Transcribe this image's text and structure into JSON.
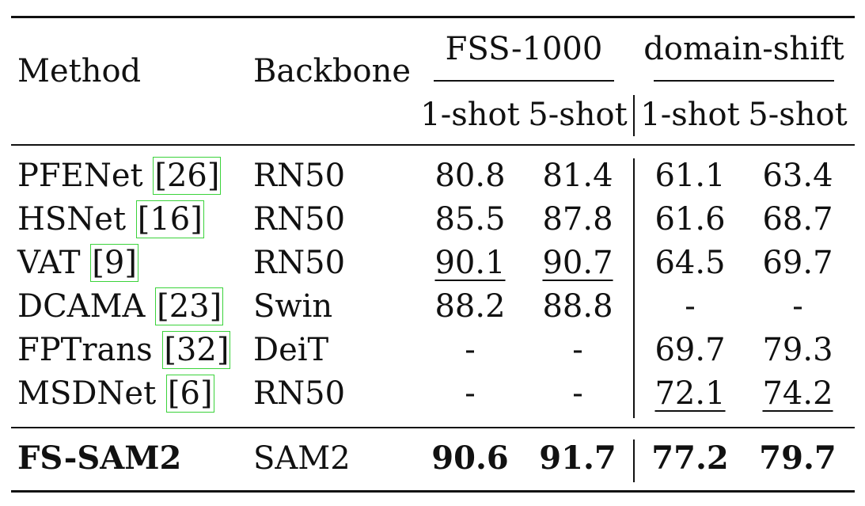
{
  "table": {
    "headers": {
      "method": "Method",
      "backbone": "Backbone",
      "group1": "FSS-1000",
      "group2": "domain-shift",
      "sub": [
        "1-shot",
        "5-shot",
        "1-shot",
        "5-shot"
      ]
    },
    "rows": [
      {
        "method": "PFENet",
        "cite": "[26]",
        "backbone": "RN50",
        "values": [
          "80.8",
          "81.4",
          "61.1",
          "63.4"
        ],
        "underline": [
          false,
          false,
          false,
          false
        ]
      },
      {
        "method": "HSNet",
        "cite": "[16]",
        "backbone": "RN50",
        "values": [
          "85.5",
          "87.8",
          "61.6",
          "68.7"
        ],
        "underline": [
          false,
          false,
          false,
          false
        ]
      },
      {
        "method": "VAT",
        "cite": "[9]",
        "backbone": "RN50",
        "values": [
          "90.1",
          "90.7",
          "64.5",
          "69.7"
        ],
        "underline": [
          true,
          true,
          false,
          false
        ]
      },
      {
        "method": "DCAMA",
        "cite": "[23]",
        "backbone": "Swin",
        "values": [
          "88.2",
          "88.8",
          "-",
          "-"
        ],
        "underline": [
          false,
          false,
          false,
          false
        ]
      },
      {
        "method": "FPTrans",
        "cite": "[32]",
        "backbone": "DeiT",
        "values": [
          "-",
          "-",
          "69.7",
          "79.3"
        ],
        "underline": [
          false,
          false,
          false,
          false
        ]
      },
      {
        "method": "MSDNet",
        "cite": "[6]",
        "backbone": "RN50",
        "values": [
          "-",
          "-",
          "72.1",
          "74.2"
        ],
        "underline": [
          false,
          false,
          true,
          true
        ]
      }
    ],
    "final": {
      "method": "FS-SAM2",
      "backbone": "SAM2",
      "values": [
        "90.6",
        "91.7",
        "77.2",
        "79.7"
      ]
    }
  }
}
